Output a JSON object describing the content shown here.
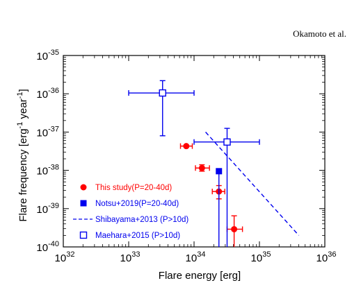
{
  "page_header": "Okamoto et al.",
  "chart_data": {
    "type": "scatter",
    "xlabel": "Flare energy [erg]",
    "ylabel_parts": [
      "Flare frequency [erg",
      "-1",
      " year",
      "-1",
      "]"
    ],
    "x_log": true,
    "y_log": true,
    "xlim": [
      1e+32,
      1e+36
    ],
    "ylim": [
      1e-40,
      1e-35
    ],
    "x_tick_labels": [
      {
        "base": "10",
        "exp": "32"
      },
      {
        "base": "10",
        "exp": "33"
      },
      {
        "base": "10",
        "exp": "34"
      },
      {
        "base": "10",
        "exp": "35"
      },
      {
        "base": "10",
        "exp": "36"
      }
    ],
    "y_tick_labels": [
      {
        "base": "10",
        "exp": "-40"
      },
      {
        "base": "10",
        "exp": "-39"
      },
      {
        "base": "10",
        "exp": "-38"
      },
      {
        "base": "10",
        "exp": "-37"
      },
      {
        "base": "10",
        "exp": "-36"
      },
      {
        "base": "10",
        "exp": "-35"
      }
    ],
    "series": [
      {
        "name": "This study(P=20-40d)",
        "color": "#ff0000",
        "marker": "circle-filled",
        "points": [
          {
            "x": 7.6e+33,
            "y": 4.3e-38,
            "xerr": [
              6.2e+33,
              9.4e+33
            ],
            "yerr": null
          },
          {
            "x": 1.32e+34,
            "y": 1.15e-38,
            "xerr": [
              1.05e+34,
              1.72e+34
            ],
            "yerr": [
              9.5e-39,
              1.4e-38
            ]
          },
          {
            "x": 2.4e+34,
            "y": 2.8e-39,
            "xerr": [
              1.9e+34,
              2.95e+34
            ],
            "yerr": [
              1.8e-39,
              4e-39
            ]
          },
          {
            "x": 4.1e+34,
            "y": 2.9e-40,
            "xerr": [
              3.2e+34,
              5.5e+34
            ],
            "yerr": [
              1e-40,
              6.5e-40
            ]
          }
        ]
      },
      {
        "name": "Notsu+2019(P=20-40d)",
        "color": "#0000ee",
        "marker": "square-filled",
        "points": [
          {
            "x": 2.4e+34,
            "y": 9.5e-39,
            "xerr": null,
            "yerr": [
              1e-40,
              1e-38
            ]
          }
        ]
      },
      {
        "name": "Shibayama+2013 (P>10d)",
        "color": "#0000ee",
        "marker": "dashed-line",
        "line": {
          "x": [
            1.5e+34,
            4e+35
          ],
          "y": [
            1e-37,
            2e-40
          ]
        }
      },
      {
        "name": "Maehara+2015 (P>10d)",
        "color": "#0000ee",
        "marker": "square-open",
        "points": [
          {
            "x": 3.3e+33,
            "y": 1.05e-36,
            "xerr": [
              1e+33,
              1e+34
            ],
            "yerr": [
              8e-38,
              2.2e-36
            ]
          },
          {
            "x": 3.2e+34,
            "y": 5.5e-38,
            "xerr": [
              1e+34,
              1e+35
            ],
            "yerr": [
              1e-40,
              1.25e-37
            ]
          }
        ]
      }
    ],
    "legend_placement": "lower-left inside"
  }
}
